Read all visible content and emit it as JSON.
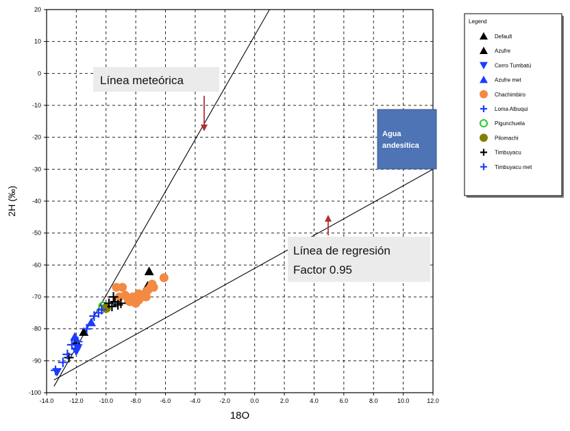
{
  "chart_data": {
    "type": "scatter",
    "xlabel": "18O",
    "ylabel": "2H (‰)",
    "xlim": [
      -14.0,
      12.0
    ],
    "ylim": [
      -100,
      20
    ],
    "x_ticks": [
      -14,
      -12,
      -10,
      -8,
      -6,
      -4,
      -2,
      0,
      2,
      4,
      6,
      8,
      10,
      12
    ],
    "x_tick_labels": [
      "-14.0",
      "-12.0",
      "-10.0",
      "-8.0",
      "-6.0",
      "-4.0",
      "-2.0",
      "0.0",
      "2.0",
      "4.0",
      "6.0",
      "8.0",
      "10.0",
      "12.0"
    ],
    "y_ticks": [
      -100,
      -90,
      -80,
      -70,
      -60,
      -50,
      -40,
      -30,
      -20,
      -10,
      0,
      10,
      20
    ],
    "y_tick_labels": [
      "-100",
      "-90",
      "-80",
      "-70",
      "-60",
      "-50",
      "-40",
      "-30",
      "-20",
      "-10",
      "0",
      "10",
      "20"
    ],
    "grid": true,
    "legend": {
      "title": "Legend",
      "position": "top-right, outside plot"
    },
    "series": [
      {
        "name": "Default",
        "marker": "triangle-up",
        "color": "#000000",
        "points": [
          [
            -7.1,
            -62
          ]
        ]
      },
      {
        "name": "Azufre",
        "marker": "triangle-up",
        "color": "#000000",
        "points": [
          [
            -12.0,
            -84
          ],
          [
            -11.5,
            -81
          ],
          [
            -7.2,
            -66.5
          ]
        ]
      },
      {
        "name": "Cerro Tumbatú",
        "marker": "triangle-down",
        "color": "#1a3cff",
        "points": [
          [
            -13.3,
            -93.5
          ],
          [
            -12.0,
            -87
          ],
          [
            -11.9,
            -86
          ]
        ]
      },
      {
        "name": "Azufre met",
        "marker": "triangle-up",
        "color": "#1a3cff",
        "points": [
          [
            -12.1,
            -82.5
          ],
          [
            -11.0,
            -78
          ]
        ]
      },
      {
        "name": "Chachimbiro",
        "marker": "circle",
        "color": "#f28a43",
        "points": [
          [
            -9.3,
            -67
          ],
          [
            -8.9,
            -67
          ],
          [
            -9.1,
            -70
          ],
          [
            -8.7,
            -69.5
          ],
          [
            -8.5,
            -71
          ],
          [
            -8.2,
            -70
          ],
          [
            -8.0,
            -72
          ],
          [
            -7.8,
            -71
          ],
          [
            -7.6,
            -70
          ],
          [
            -7.4,
            -69
          ],
          [
            -7.2,
            -68
          ],
          [
            -7.0,
            -67
          ],
          [
            -6.8,
            -67
          ],
          [
            -7.3,
            -70
          ],
          [
            -7.8,
            -69
          ],
          [
            -8.4,
            -71.5
          ],
          [
            -6.9,
            -66
          ],
          [
            -6.1,
            -64
          ]
        ]
      },
      {
        "name": "Loma Albuqui",
        "marker": "plus",
        "color": "#1a3cff",
        "points": [
          [
            -12.3,
            -85
          ],
          [
            -11.9,
            -84
          ]
        ]
      },
      {
        "name": "Pigunchuela",
        "marker": "circle-open",
        "color": "#33cc33",
        "points": [
          [
            -10.2,
            -73
          ]
        ]
      },
      {
        "name": "Pilomachi",
        "marker": "circle",
        "color": "#808000",
        "points": [
          [
            -10.0,
            -73.5
          ]
        ]
      },
      {
        "name": "Timbuyacu",
        "marker": "plus",
        "color": "#000000",
        "points": [
          [
            -9.8,
            -72
          ],
          [
            -9.5,
            -70
          ],
          [
            -9.4,
            -71.5
          ],
          [
            -9.2,
            -72.5
          ],
          [
            -9.0,
            -72
          ],
          [
            -9.6,
            -73
          ],
          [
            -12.5,
            -89
          ]
        ]
      },
      {
        "name": "Timbuyacu met",
        "marker": "plus",
        "color": "#1a3cff",
        "points": [
          [
            -13.4,
            -93
          ],
          [
            -12.9,
            -90.5
          ],
          [
            -12.6,
            -88
          ],
          [
            -11.3,
            -80
          ],
          [
            -10.8,
            -76
          ],
          [
            -10.5,
            -75
          ],
          [
            -10.3,
            -74
          ]
        ]
      }
    ],
    "lines": [
      {
        "name": "Línea meteórica",
        "color": "#000000",
        "x": [
          -13.5,
          1.0
        ],
        "y": [
          -98,
          20
        ]
      },
      {
        "name": "Línea de regresión",
        "color": "#000000",
        "x": [
          -13.5,
          12.0
        ],
        "y": [
          -96,
          -30
        ]
      }
    ],
    "annotations": [
      {
        "id": "meteoric",
        "lines": [
          "Línea meteórica"
        ],
        "arrow_color": "#b03030"
      },
      {
        "id": "regression",
        "lines": [
          "Línea de regresión",
          "Factor 0.95"
        ],
        "arrow_color": "#b03030"
      },
      {
        "id": "andesitic",
        "lines": [
          "Agua",
          "andesítica"
        ],
        "box_color": "#4f74b5",
        "text_color": "#ffffff"
      }
    ]
  }
}
